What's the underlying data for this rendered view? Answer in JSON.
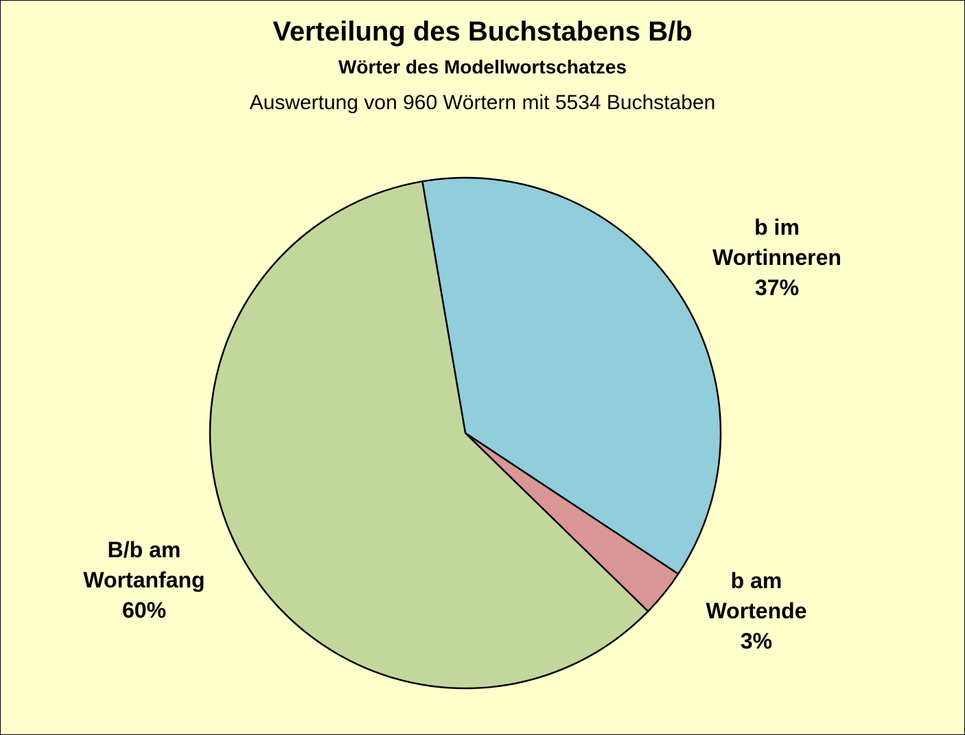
{
  "chart_data": {
    "type": "pie",
    "title": "Verteilung des Buchstabens B/b",
    "subtitle": "Wörter des Modellwortschatzes",
    "note": "Auswertung von 960 Wörtern mit 5534 Buchstaben",
    "slices": [
      {
        "label_lines": [
          "b im",
          "Wortinneren"
        ],
        "pct_label": "37%",
        "value": 37,
        "color": "#92CDDC"
      },
      {
        "label_lines": [
          "b am",
          "Wortende"
        ],
        "pct_label": "3%",
        "value": 3,
        "color": "#D99694"
      },
      {
        "label_lines": [
          "B/b am",
          "Wortanfang"
        ],
        "pct_label": "60%",
        "value": 60,
        "color": "#C3D69B"
      }
    ],
    "start_angle_deg": -9.7,
    "direction": "clockwise",
    "background": "#FFFFCC"
  }
}
